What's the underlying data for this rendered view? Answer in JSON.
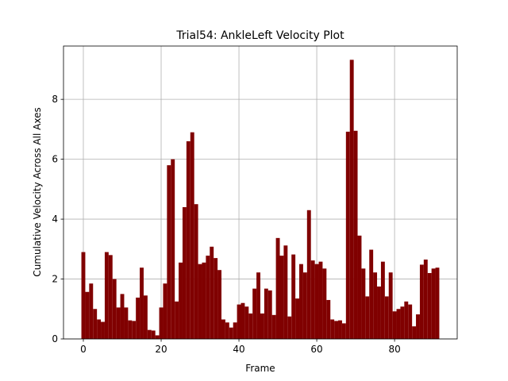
{
  "chart_data": {
    "type": "bar",
    "title": "Trial54: AnkleLeft Velocity Plot",
    "xlabel": "Frame",
    "ylabel": "Cumulative Velocity Across All Axes",
    "x": [
      0,
      1,
      2,
      3,
      4,
      5,
      6,
      7,
      8,
      9,
      10,
      11,
      12,
      13,
      14,
      15,
      16,
      17,
      18,
      19,
      20,
      21,
      22,
      23,
      24,
      25,
      26,
      27,
      28,
      29,
      30,
      31,
      32,
      33,
      34,
      35,
      36,
      37,
      38,
      39,
      40,
      41,
      42,
      43,
      44,
      45,
      46,
      47,
      48,
      49,
      50,
      51,
      52,
      53,
      54,
      55,
      56,
      57,
      58,
      59,
      60,
      61,
      62,
      63,
      64,
      65,
      66,
      67,
      68,
      69,
      70,
      71,
      72,
      73,
      74,
      75,
      76,
      77,
      78,
      79,
      80,
      81,
      82,
      83,
      84,
      85,
      86,
      87,
      88,
      89,
      90,
      91
    ],
    "values": [
      2.9,
      1.57,
      1.85,
      1.0,
      0.65,
      0.57,
      2.9,
      2.8,
      2.0,
      1.05,
      1.5,
      1.05,
      0.62,
      0.6,
      1.38,
      2.38,
      1.45,
      0.3,
      0.28,
      0.12,
      1.05,
      1.85,
      5.8,
      6.0,
      1.25,
      2.55,
      4.4,
      6.6,
      6.9,
      4.5,
      2.5,
      2.55,
      2.78,
      3.08,
      2.7,
      2.3,
      0.65,
      0.55,
      0.38,
      0.55,
      1.15,
      1.2,
      1.08,
      0.85,
      1.68,
      2.22,
      0.85,
      1.68,
      1.62,
      0.8,
      3.37,
      2.78,
      3.12,
      0.75,
      2.82,
      1.35,
      2.5,
      2.22,
      4.3,
      2.62,
      2.5,
      2.58,
      2.35,
      1.3,
      0.65,
      0.6,
      0.62,
      0.52,
      6.92,
      9.32,
      6.95,
      3.45,
      2.35,
      1.42,
      2.98,
      2.22,
      1.75,
      2.58,
      1.42,
      2.22,
      0.92,
      1.0,
      1.08,
      1.25,
      1.15,
      0.42,
      0.82,
      2.48,
      2.65,
      2.2,
      2.35,
      2.38
    ],
    "bar_width": 1,
    "color": "#800000",
    "xlim": [
      -5.1,
      96.1
    ],
    "ylim": [
      0,
      9.78
    ],
    "xticks": [
      0,
      20,
      40,
      60,
      80
    ],
    "yticks": [
      0,
      2,
      4,
      6,
      8
    ],
    "grid": true
  }
}
